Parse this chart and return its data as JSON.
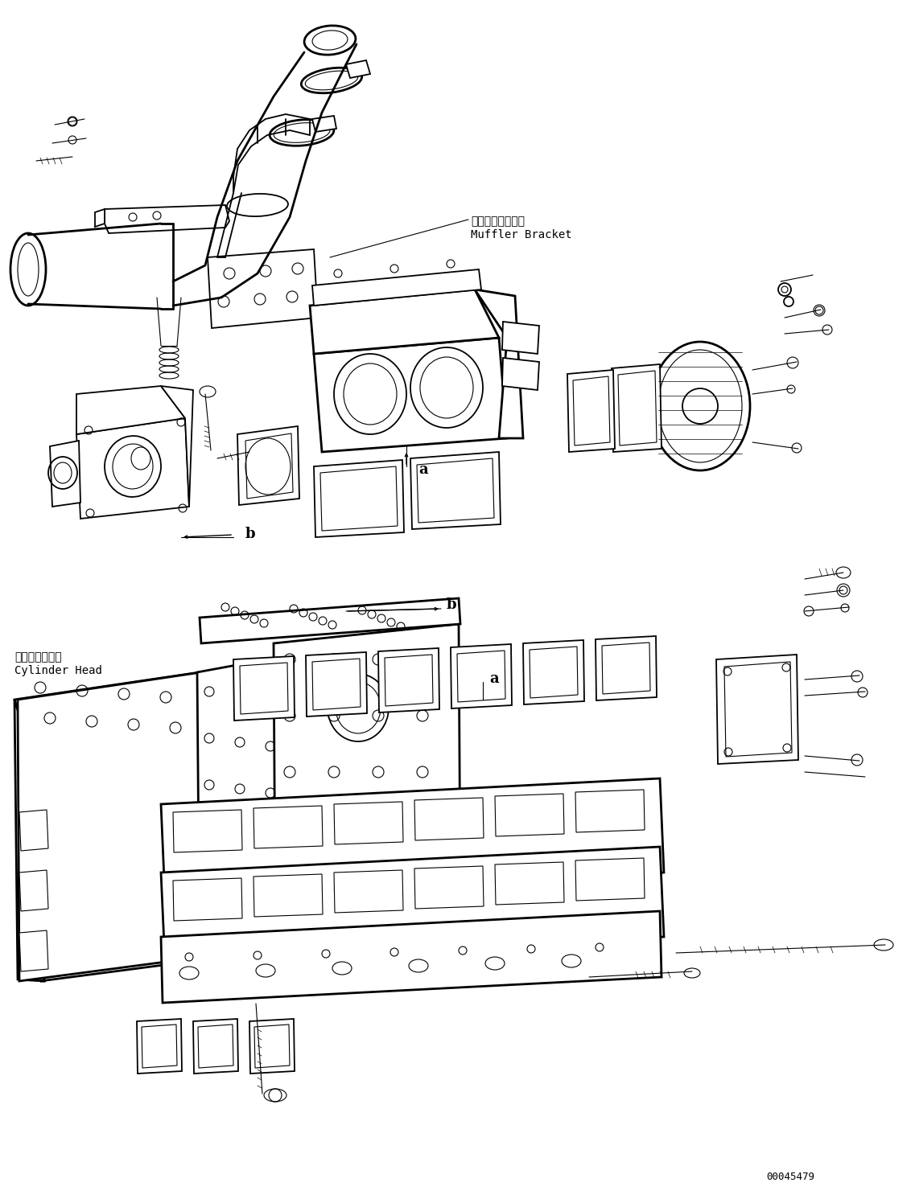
{
  "bg_color": "#ffffff",
  "line_color": "#000000",
  "figsize": [
    11.37,
    14.91
  ],
  "dpi": 100,
  "label_muffler_jp": "マフラブラケット",
  "label_muffler_en": "Muffler Bracket",
  "label_cylinder_jp": "シリンダヘッド",
  "label_cylinder_en": "Cylinder Head",
  "label_a1": "a",
  "label_a2": "a",
  "label_b1": "b",
  "label_b2": "b",
  "part_number": "00045479",
  "font_size_label": 10,
  "font_size_jp": 10,
  "font_size_partnumber": 9,
  "font_size_ab": 13
}
